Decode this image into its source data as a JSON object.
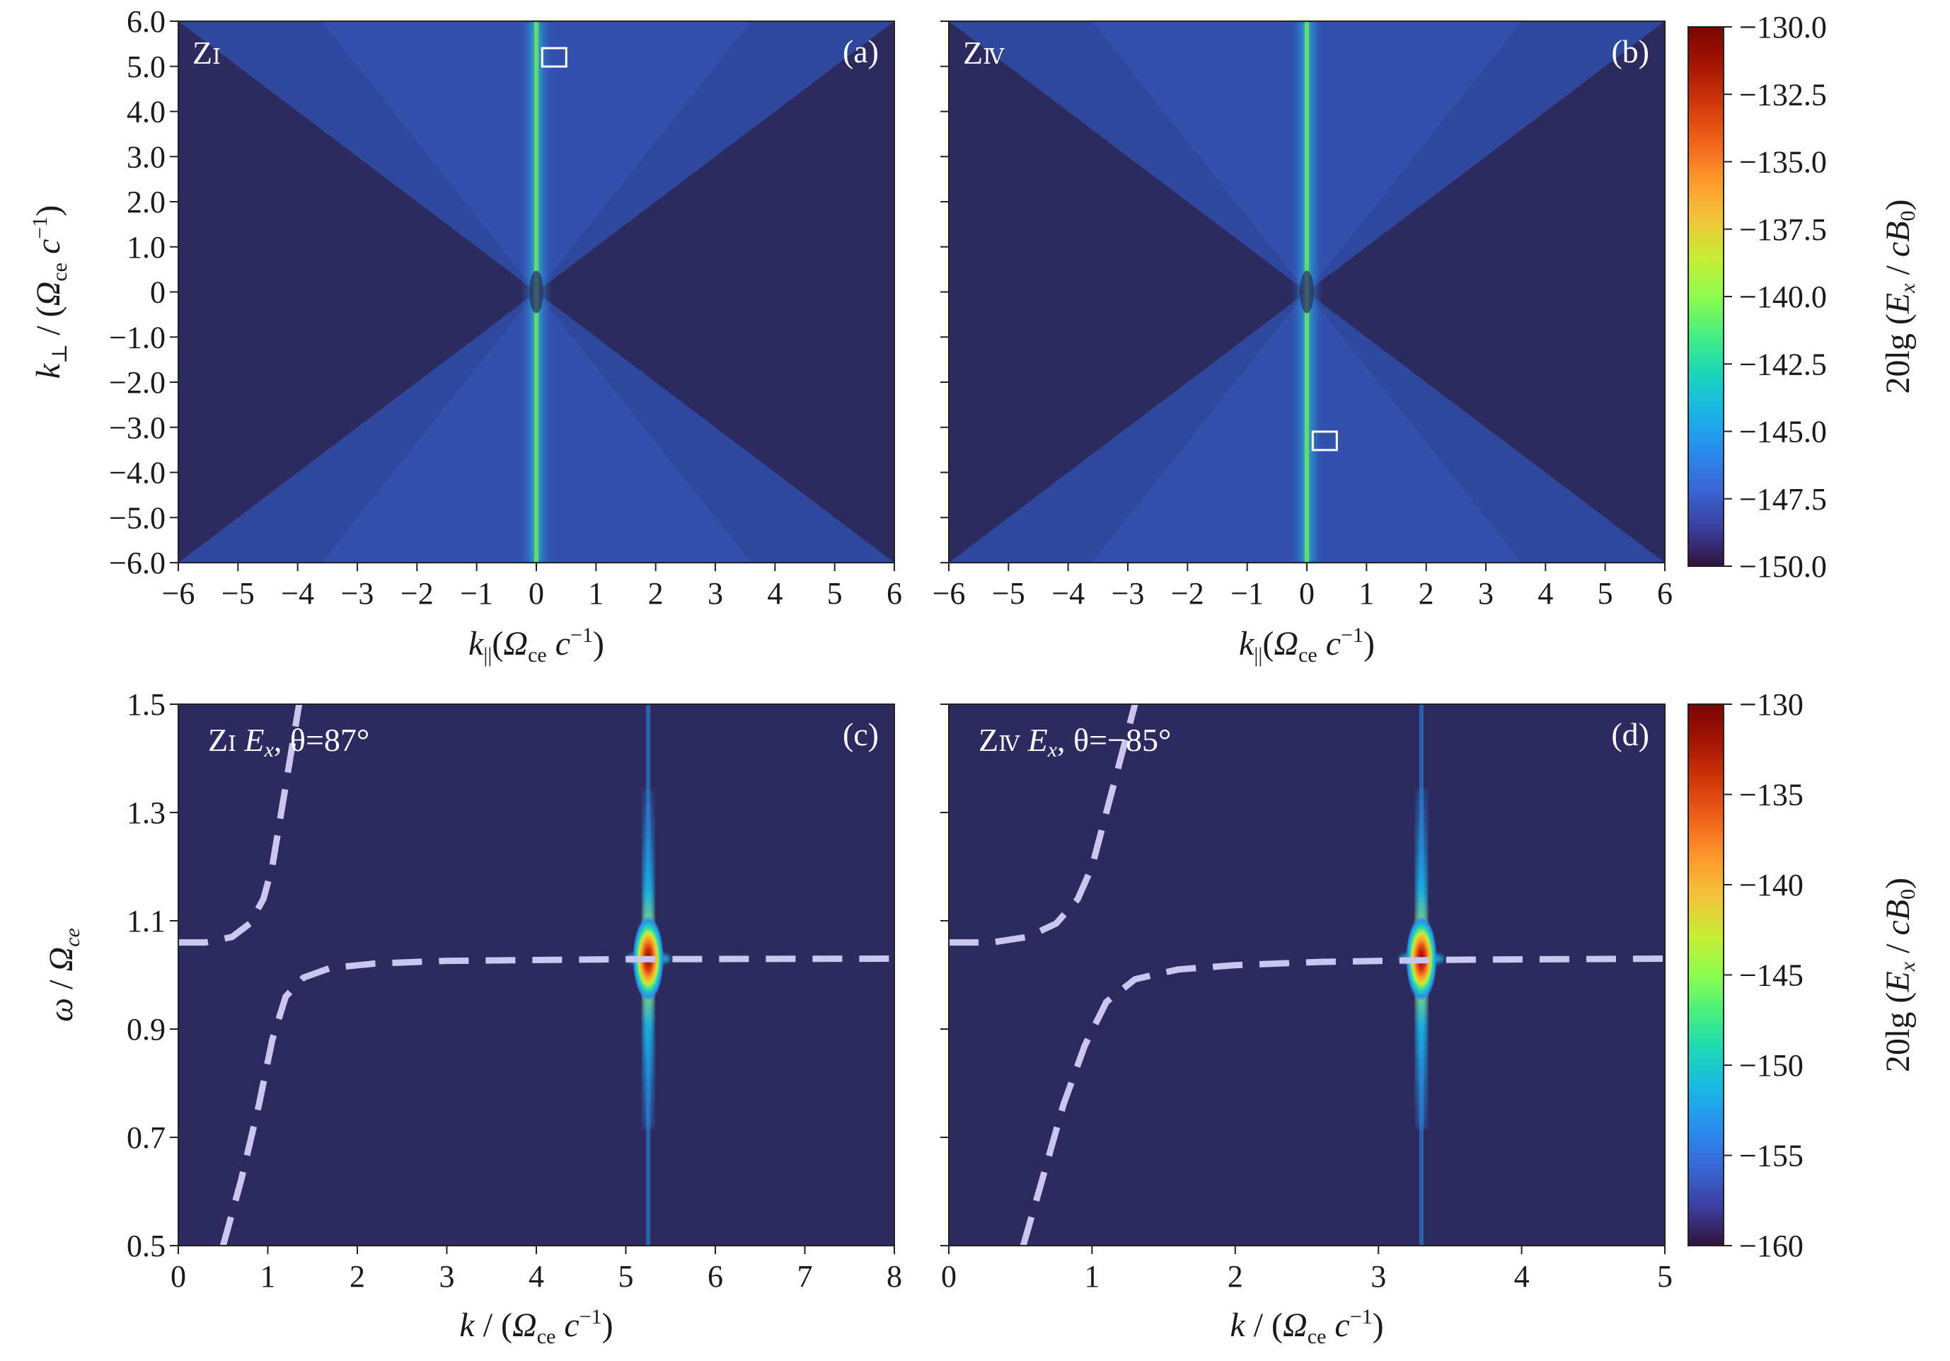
{
  "colors": {
    "background": "#2c2a5e",
    "cone": "#2f4aa0",
    "colormap": [
      "#30123b",
      "#3b3f9e",
      "#3a66d6",
      "#2a8cf0",
      "#1ab5e6",
      "#1bd6ba",
      "#46ef80",
      "#8dfd4e",
      "#c7ed34",
      "#f1c53a",
      "#fe9a2c",
      "#f0641a",
      "#d2380a",
      "#a51503",
      "#7a0403"
    ],
    "dispersion": "#cbc6f0",
    "box": "#ffffff"
  },
  "chart_data": [
    {
      "id": "a",
      "type": "heatmap",
      "panel_label": "(a)",
      "region": "Z",
      "region_sub": "Ⅰ",
      "xlabel_var": "k",
      "xlabel_sub": "||",
      "ylabel_var": "k",
      "ylabel_sub": "⊥",
      "xticks": [
        -6,
        -5,
        -4,
        -3,
        -2,
        -1,
        0,
        1,
        2,
        3,
        4,
        5,
        6
      ],
      "xtick_labels": [
        "−6",
        "−5",
        "−4",
        "−3",
        "−2",
        "−1",
        "0",
        "1",
        "2",
        "3",
        "4",
        "5",
        "6"
      ],
      "yticks": [
        6,
        5,
        4,
        3,
        2,
        1,
        0,
        -1,
        -2,
        -3,
        -4,
        -5,
        -6
      ],
      "ytick_labels": [
        "6.0",
        "5.0",
        "4.0",
        "3.0",
        "2.0",
        "1.0",
        "0",
        "−1.0",
        "−2.0",
        "−3.0",
        "−4.0",
        "−5.0",
        "−6.0"
      ],
      "xlim": [
        -6,
        6
      ],
      "ylim": [
        -6,
        6
      ],
      "cone_slope": 1.0,
      "highlight_box": {
        "k_par": 0.3,
        "k_perp": 5.2
      }
    },
    {
      "id": "b",
      "type": "heatmap",
      "panel_label": "(b)",
      "region": "Z",
      "region_sub": "Ⅳ",
      "xlabel_var": "k",
      "xlabel_sub": "||",
      "xticks": [
        -6,
        -5,
        -4,
        -3,
        -2,
        -1,
        0,
        1,
        2,
        3,
        4,
        5,
        6
      ],
      "xtick_labels": [
        "−6",
        "−5",
        "−4",
        "−3",
        "−2",
        "−1",
        "0",
        "1",
        "2",
        "3",
        "4",
        "5",
        "6"
      ],
      "xlim": [
        -6,
        6
      ],
      "ylim": [
        -6,
        6
      ],
      "cone_slope": 1.0,
      "highlight_box": {
        "k_par": 0.3,
        "k_perp": -3.3
      }
    },
    {
      "id": "c",
      "type": "heatmap",
      "panel_label": "(c)",
      "region": "Z",
      "region_sub": "Ⅰ",
      "field_var": "E",
      "field_sub": "x",
      "theta_text": "θ=87°",
      "xlabel_var": "k",
      "ylabel_var": "ω",
      "ylabel_omega": "Ω",
      "ylabel_omega_sub": "ce",
      "xticks": [
        0,
        1,
        2,
        3,
        4,
        5,
        6,
        7,
        8
      ],
      "xtick_labels": [
        "0",
        "1",
        "2",
        "3",
        "4",
        "5",
        "6",
        "7",
        "8"
      ],
      "yticks": [
        1.5,
        1.3,
        1.1,
        0.9,
        0.7,
        0.5
      ],
      "ytick_labels": [
        "1.5",
        "1.3",
        "1.1",
        "0.9",
        "0.7",
        "0.5"
      ],
      "xlim": [
        0,
        8
      ],
      "ylim": [
        0.5,
        1.5
      ],
      "peak": {
        "k": 5.25,
        "omega": 1.03
      },
      "dispersion_lower": [
        [
          0.5,
          0.5
        ],
        [
          0.7,
          0.62
        ],
        [
          0.9,
          0.76
        ],
        [
          1.05,
          0.88
        ],
        [
          1.2,
          0.96
        ],
        [
          1.4,
          0.995
        ],
        [
          1.7,
          1.013
        ],
        [
          2.2,
          1.021
        ],
        [
          3.0,
          1.026
        ],
        [
          5.0,
          1.029
        ],
        [
          8.0,
          1.03
        ]
      ],
      "dispersion_upper": [
        [
          0.0,
          1.06
        ],
        [
          0.3,
          1.06
        ],
        [
          0.6,
          1.07
        ],
        [
          0.8,
          1.095
        ],
        [
          0.95,
          1.14
        ],
        [
          1.05,
          1.2
        ],
        [
          1.15,
          1.3
        ],
        [
          1.25,
          1.4
        ],
        [
          1.35,
          1.5
        ]
      ]
    },
    {
      "id": "d",
      "type": "heatmap",
      "panel_label": "(d)",
      "region": "Z",
      "region_sub": "Ⅳ",
      "field_var": "E",
      "field_sub": "x",
      "theta_text": "θ=−85°",
      "xlabel_var": "k",
      "xticks": [
        0,
        1,
        2,
        3,
        4,
        5
      ],
      "xtick_labels": [
        "0",
        "1",
        "2",
        "3",
        "4",
        "5"
      ],
      "xlim": [
        0,
        5
      ],
      "ylim": [
        0.5,
        1.5
      ],
      "peak": {
        "k": 3.3,
        "omega": 1.03
      },
      "dispersion_lower": [
        [
          0.52,
          0.5
        ],
        [
          0.65,
          0.62
        ],
        [
          0.8,
          0.76
        ],
        [
          0.95,
          0.87
        ],
        [
          1.1,
          0.95
        ],
        [
          1.3,
          0.992
        ],
        [
          1.6,
          1.01
        ],
        [
          2.0,
          1.018
        ],
        [
          2.6,
          1.024
        ],
        [
          3.5,
          1.028
        ],
        [
          5.0,
          1.03
        ]
      ],
      "dispersion_upper": [
        [
          0.0,
          1.06
        ],
        [
          0.3,
          1.06
        ],
        [
          0.55,
          1.07
        ],
        [
          0.75,
          1.095
        ],
        [
          0.9,
          1.14
        ],
        [
          1.0,
          1.2
        ],
        [
          1.1,
          1.3
        ],
        [
          1.2,
          1.4
        ],
        [
          1.3,
          1.5
        ]
      ]
    }
  ],
  "unit": {
    "open": "(",
    "omega": "Ω",
    "sub": "ce",
    "c": "c",
    "exp": "−1",
    "close": ")"
  },
  "colorbars": [
    {
      "id": "top",
      "ticks": [
        -130,
        -132.5,
        -135,
        -137.5,
        -140,
        -142.5,
        -145,
        -147.5,
        -150
      ],
      "tick_labels": [
        "−130.0",
        "−132.5",
        "−135.0",
        "−137.5",
        "−140.0",
        "−142.5",
        "−145.0",
        "−147.5",
        "−150.0"
      ],
      "range": [
        -150,
        -130
      ],
      "label": {
        "prefix": "20lg (",
        "E": "E",
        "x": "x",
        "slash": " / ",
        "c": "cB",
        "zero": "0",
        "close": ")"
      }
    },
    {
      "id": "bottom",
      "ticks": [
        -130,
        -135,
        -140,
        -145,
        -150,
        -155,
        -160
      ],
      "tick_labels": [
        "−130",
        "−135",
        "−140",
        "−145",
        "−150",
        "−155",
        "−160"
      ],
      "range": [
        -160,
        -130
      ],
      "label": {
        "prefix": "20lg (",
        "E": "E",
        "x": "x",
        "slash": " / ",
        "c": "cB",
        "zero": "0",
        "close": ")"
      }
    }
  ]
}
